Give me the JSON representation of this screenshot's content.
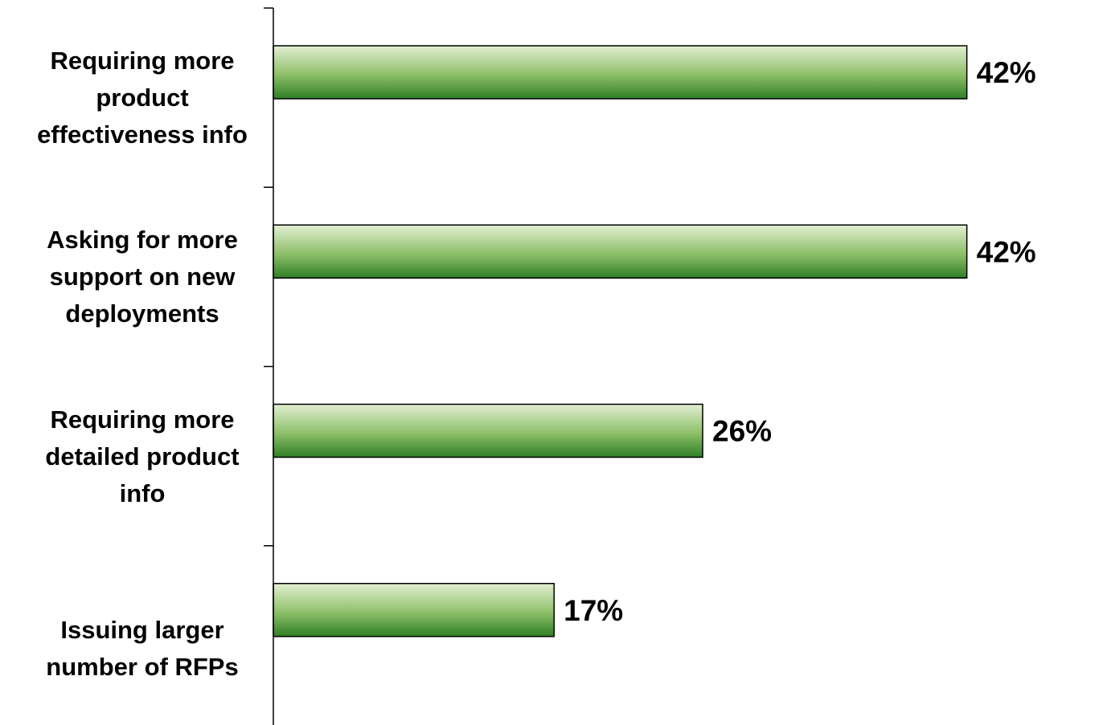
{
  "chart_data": {
    "type": "bar",
    "orientation": "horizontal",
    "categories": [
      "Requiring more product effectiveness info",
      "Asking for more support on new deployments",
      "Requiring more detailed product info",
      "Issuing larger number of RFPs"
    ],
    "category_labels": [
      "Requiring more\nproduct\neffectiveness info",
      "Asking for more\nsupport on new\ndeployments",
      "Requiring more\ndetailed product\ninfo",
      "Issuing larger\nnumber of RFPs"
    ],
    "values": [
      42,
      42,
      26,
      17
    ],
    "data_labels": [
      "42%",
      "42%",
      "26%",
      "17%"
    ],
    "xlim": [
      0,
      48.2
    ],
    "grid": false,
    "legend": "none",
    "colors": {
      "bar_top": "#e2efd2",
      "bar_mid": "#8dbf68",
      "bar_bottom": "#2f7f26",
      "bar_border": "#000000",
      "axis": "#000000"
    }
  }
}
